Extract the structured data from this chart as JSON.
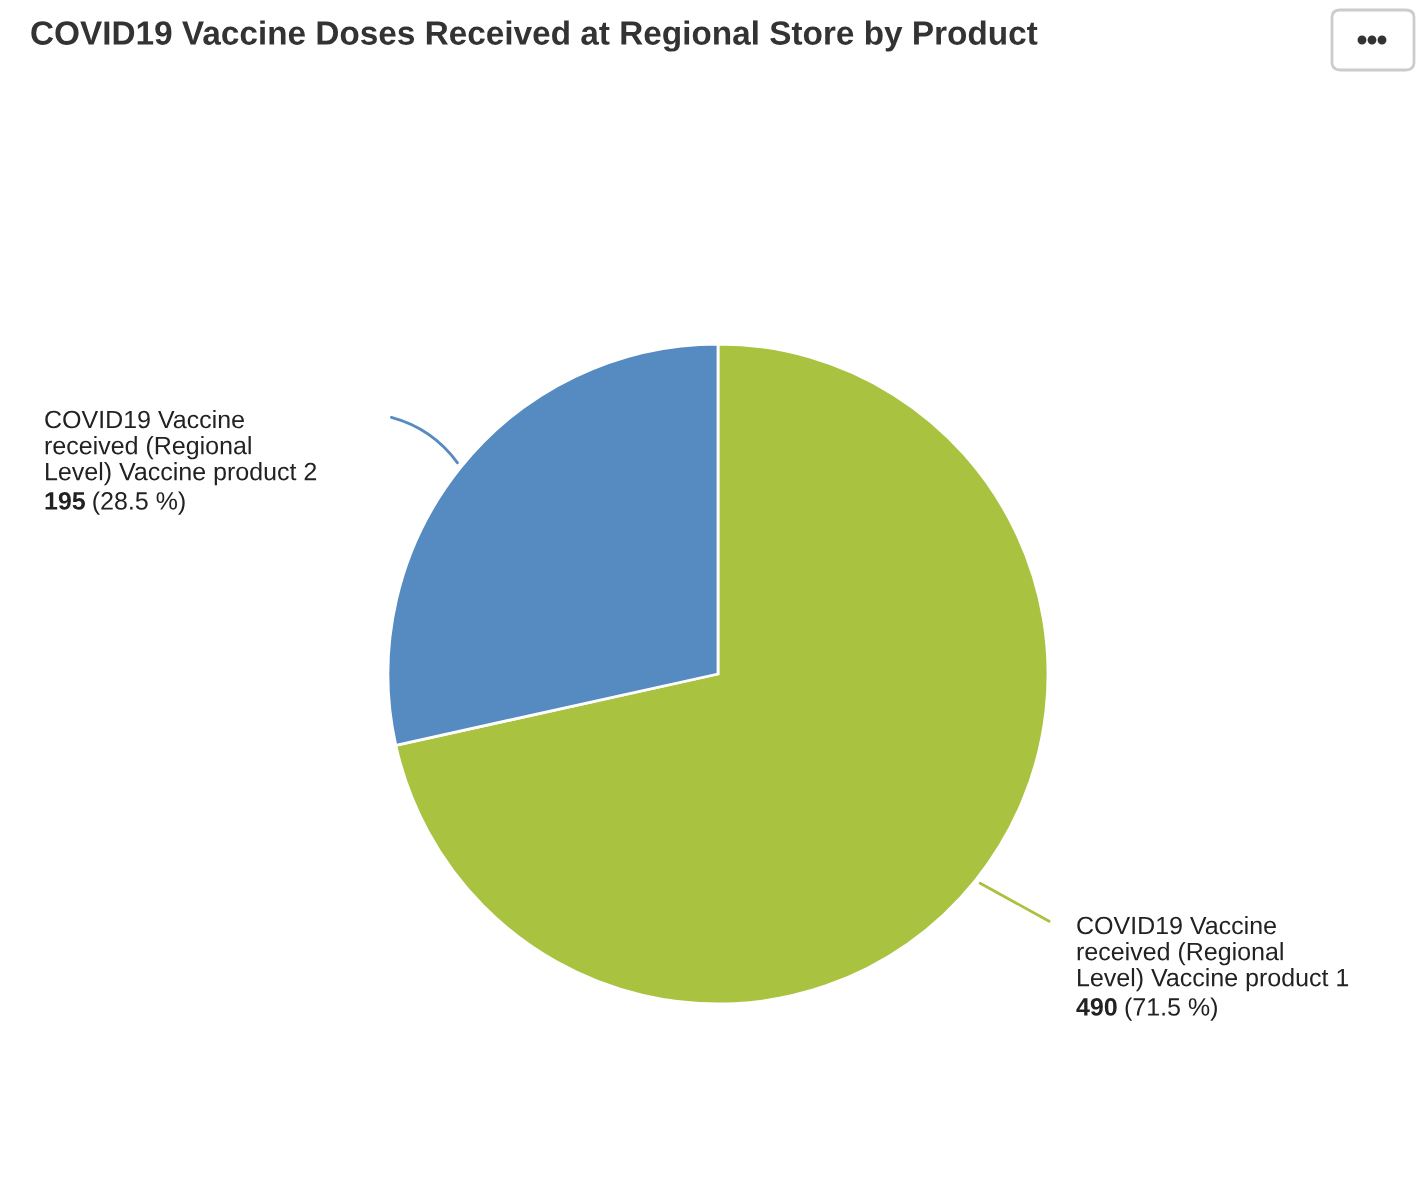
{
  "chart_data": {
    "type": "pie",
    "title": "COVID19 Vaccine Doses Received at Regional Store by Product",
    "categories": [
      "COVID19 Vaccine received (Regional Level) Vaccine product 1",
      "COVID19 Vaccine received (Regional Level) Vaccine product 2"
    ],
    "values": [
      490,
      195
    ],
    "colors": [
      "#a9c23f",
      "#558bc1"
    ],
    "value_labels": [
      "490 (71.5 %)",
      "195 (28.5 %)"
    ]
  }
}
